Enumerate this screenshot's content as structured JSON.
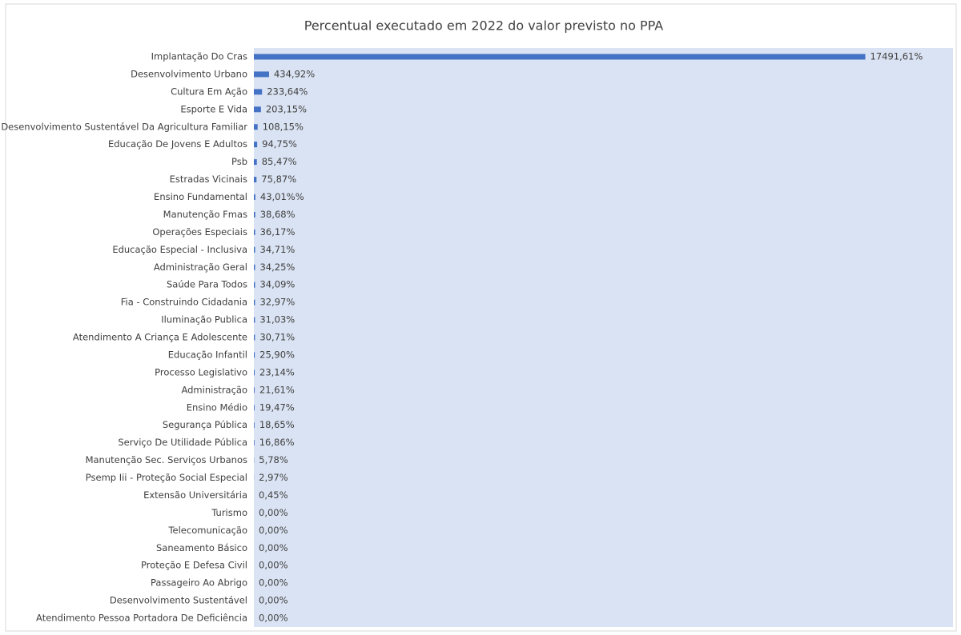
{
  "chart_data": {
    "type": "bar",
    "orientation": "horizontal",
    "title": "Percentual executado em 2022 do valor previsto no PPA",
    "categories": [
      "Implantação Do Cras",
      "Desenvolvimento Urbano",
      "Cultura Em Ação",
      "Esporte E Vida",
      "Desenvolvimento Sustentável Da Agricultura Familiar",
      "Educação De Jovens E Adultos",
      "Psb",
      "Estradas Vicinais",
      "Ensino Fundamental",
      "Manutenção Fmas",
      "Operações Especiais",
      "Educação Especial - Inclusiva",
      "Administração Geral",
      "Saúde Para Todos",
      "Fia - Construindo Cidadania",
      "Iluminação Publica",
      "Atendimento A Criança E Adolescente",
      "Educação Infantil",
      "Processo Legislativo",
      "Administração",
      "Ensino Médio",
      "Segurança Pública",
      "Serviço De Utilidade Pública",
      "Manutenção Sec. Serviços Urbanos",
      "Psemp Iii - Proteção Social Especial",
      "Extensão Universitária",
      "Turismo",
      "Telecomunicação",
      "Saneamento Básico",
      "Proteção E Defesa Civil",
      "Passageiro Ao Abrigo",
      "Desenvolvimento Sustentável",
      "Atendimento Pessoa Portadora De Deficiência"
    ],
    "values": [
      17491.61,
      434.92,
      233.64,
      203.15,
      108.15,
      94.75,
      85.47,
      75.87,
      43.01,
      38.68,
      36.17,
      34.71,
      34.25,
      34.09,
      32.97,
      31.03,
      30.71,
      25.9,
      23.14,
      21.61,
      19.47,
      18.65,
      16.86,
      5.78,
      2.97,
      0.45,
      0,
      0,
      0,
      0,
      0,
      0,
      0
    ],
    "value_labels": [
      "17491,61%",
      "434,92%",
      "233,64%",
      "203,15%",
      "108,15%",
      "94,75%",
      "85,47%",
      "75,87%",
      "43,01%%",
      "38,68%",
      "36,17%",
      "34,71%",
      "34,25%",
      "34,09%",
      "32,97%",
      "31,03%",
      "30,71%",
      "25,90%",
      "23,14%",
      "21,61%",
      "19,47%",
      "18,65%",
      "16,86%",
      "5,78%",
      "2,97%",
      "0,45%",
      "0,00%",
      "0,00%",
      "0,00%",
      "0,00%",
      "0,00%",
      "0,00%",
      "0,00%"
    ],
    "color": "#4472c4",
    "xlim": [
      0,
      20000
    ]
  }
}
